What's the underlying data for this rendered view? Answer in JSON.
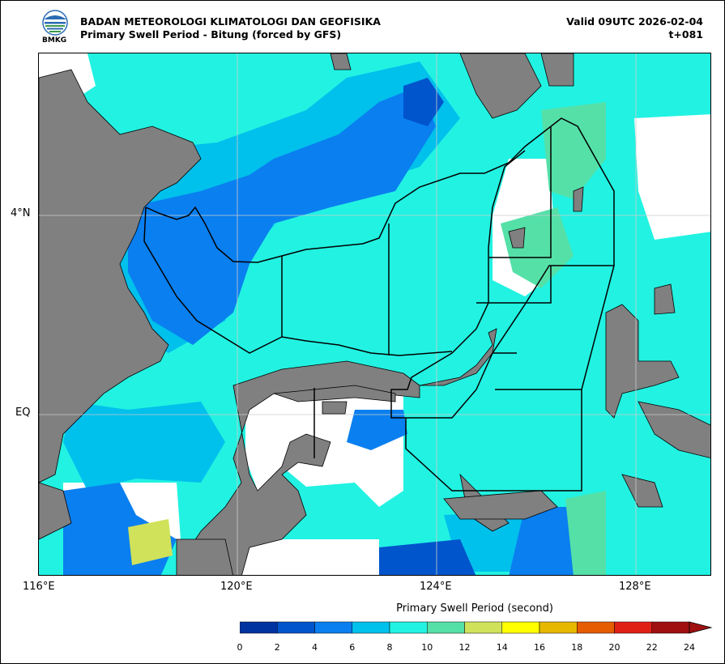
{
  "header": {
    "agency": "BADAN METEOROLOGI KLIMATOLOGI DAN GEOFISIKA",
    "product": "Primary Swell Period - Bitung (forced by GFS)",
    "valid": "Valid 09UTC 2026-02-04",
    "lead": "t+081",
    "logo_text": "BMKG"
  },
  "map": {
    "lon_labels": [
      "116°E",
      "120°E",
      "124°E",
      "128°E"
    ],
    "lat_labels": [
      "4°N",
      "EQ"
    ],
    "land_color": "#808080",
    "border_color": "#000000"
  },
  "colorbar": {
    "title": "Primary Swell Period (second)",
    "ticks": [
      "0",
      "2",
      "4",
      "6",
      "8",
      "10",
      "12",
      "14",
      "16",
      "18",
      "20",
      "22",
      "24"
    ],
    "colors": [
      "#0033a0",
      "#0055cc",
      "#0a7ff0",
      "#00c0ec",
      "#22f2e2",
      "#55e0a8",
      "#d0e25a",
      "#ffff00",
      "#e6b800",
      "#e65c00",
      "#e02015",
      "#a01010"
    ],
    "extend": "max"
  }
}
